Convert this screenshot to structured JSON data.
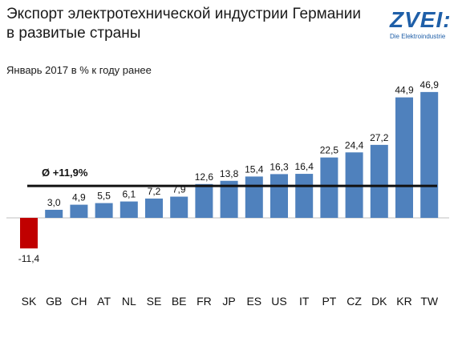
{
  "header": {
    "title_line1": "Экспорт электротехнической индустрии Германии",
    "title_line2": "в развитые страны",
    "subtitle": "Январь 2017 в % к году ранее"
  },
  "logo": {
    "word": "ZVEI:",
    "tagline": "Die Elektroindustrie"
  },
  "colors": {
    "positive": "#4f81bd",
    "negative": "#c00000",
    "average_line": "#111111"
  },
  "chart_data": {
    "type": "bar",
    "title": "Экспорт электротехнической индустрии Германии в развитые страны",
    "subtitle": "Январь 2017 в % к году ранее",
    "categories": [
      "SK",
      "GB",
      "CH",
      "AT",
      "NL",
      "SE",
      "BE",
      "FR",
      "JP",
      "ES",
      "US",
      "IT",
      "PT",
      "CZ",
      "DK",
      "KR",
      "TW"
    ],
    "value_labels": [
      "-11,4",
      "3,0",
      "4,9",
      "5,5",
      "6,1",
      "7,2",
      "7,9",
      "12,6",
      "13,8",
      "15,4",
      "16,3",
      "16,4",
      "22,5",
      "24,4",
      "27,2",
      "44,9",
      "46,9"
    ],
    "values": [
      -11.4,
      3.0,
      4.9,
      5.5,
      6.1,
      7.2,
      7.9,
      12.6,
      13.8,
      15.4,
      16.3,
      16.4,
      22.5,
      24.4,
      27.2,
      44.9,
      46.9
    ],
    "average": 11.9,
    "average_label": "Ø +11,9%",
    "ylim": [
      -11.4,
      46.9
    ],
    "grid": false,
    "legend": false
  }
}
